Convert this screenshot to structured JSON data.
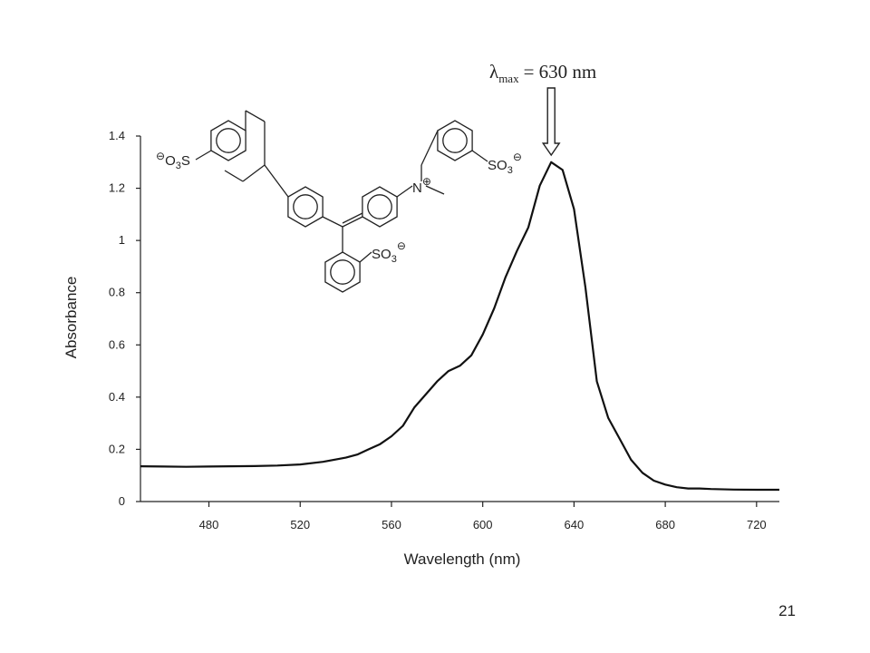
{
  "chart_data": {
    "type": "line",
    "x_label": "Wavelength (nm)",
    "y_label": "Absorbance",
    "annotation": {
      "symbol": "λ",
      "subscript": "max",
      "text": "= 630 nm",
      "x": 630
    },
    "x": [
      450,
      460,
      470,
      480,
      490,
      500,
      510,
      520,
      530,
      540,
      545,
      550,
      555,
      560,
      565,
      570,
      575,
      580,
      585,
      590,
      595,
      600,
      605,
      610,
      615,
      620,
      625,
      630,
      635,
      640,
      645,
      650,
      655,
      660,
      665,
      670,
      675,
      680,
      685,
      690,
      695,
      700,
      710,
      720,
      730
    ],
    "values": [
      0.135,
      0.134,
      0.133,
      0.134,
      0.135,
      0.136,
      0.138,
      0.142,
      0.152,
      0.168,
      0.18,
      0.2,
      0.22,
      0.25,
      0.29,
      0.36,
      0.41,
      0.46,
      0.5,
      0.52,
      0.56,
      0.64,
      0.74,
      0.86,
      0.96,
      1.05,
      1.21,
      1.3,
      1.27,
      1.12,
      0.82,
      0.46,
      0.32,
      0.24,
      0.16,
      0.11,
      0.08,
      0.065,
      0.055,
      0.05,
      0.05,
      0.048,
      0.046,
      0.045,
      0.045
    ],
    "color": "#111111",
    "xlim": [
      450,
      730
    ],
    "xticks": [
      480,
      520,
      560,
      600,
      640,
      680,
      720
    ],
    "ylim": [
      0,
      1.4
    ],
    "yticks": [
      0,
      0.2,
      0.4,
      0.6,
      0.8,
      1,
      1.2,
      1.4
    ],
    "grid": false
  },
  "structure": {
    "left_group": {
      "charge": "⊖",
      "pre": "O",
      "sub": "3",
      "post": "S"
    },
    "right_group": {
      "pre": "SO",
      "sub": "3",
      "charge": "⊖"
    },
    "nitrogen": {
      "pre": "N",
      "charge": "⊕"
    },
    "bottom_group": {
      "pre": "SO",
      "sub": "3",
      "charge": "⊖"
    }
  },
  "page_number": "21"
}
